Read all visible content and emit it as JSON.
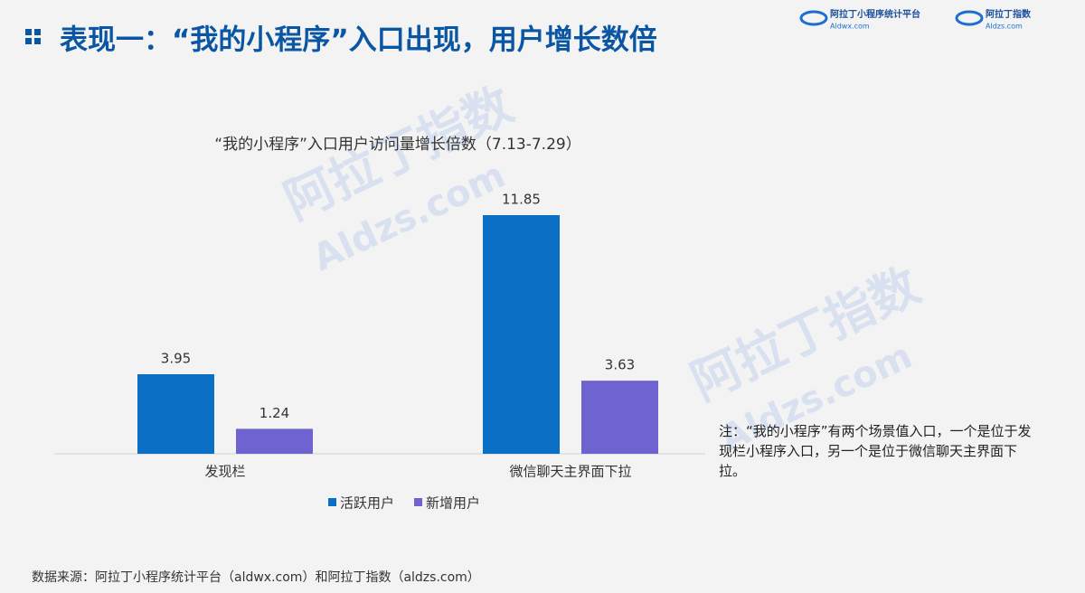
{
  "header": {
    "title": "表现一：“我的小程序”入口出现，用户增长数倍",
    "logos": [
      {
        "name": "阿拉丁小程序统计平台",
        "url": "Aldwx.com"
      },
      {
        "name": "阿拉丁指数",
        "url": "Aldzs.com"
      }
    ]
  },
  "watermarks": [
    "阿拉丁指数",
    "Aldzs.com"
  ],
  "chart_data": {
    "type": "bar",
    "title": "“我的小程序”入口用户访问量增长倍数（7.13-7.29）",
    "categories": [
      "发现栏",
      "微信聊天主界面下拉"
    ],
    "series": [
      {
        "name": "活跃用户",
        "color": "#0b6fc6",
        "values": [
          3.95,
          11.85
        ]
      },
      {
        "name": "新增用户",
        "color": "#6f63cf",
        "values": [
          1.24,
          3.63
        ]
      }
    ]
  },
  "note": "注：“我的小程序”有两个场景值入口，一个是位于发现栏小程序入口，另一个是位于微信聊天主界面下拉。",
  "source": "数据来源：阿拉丁小程序统计平台（aldwx.com）和阿拉丁指数（aldzs.com）"
}
